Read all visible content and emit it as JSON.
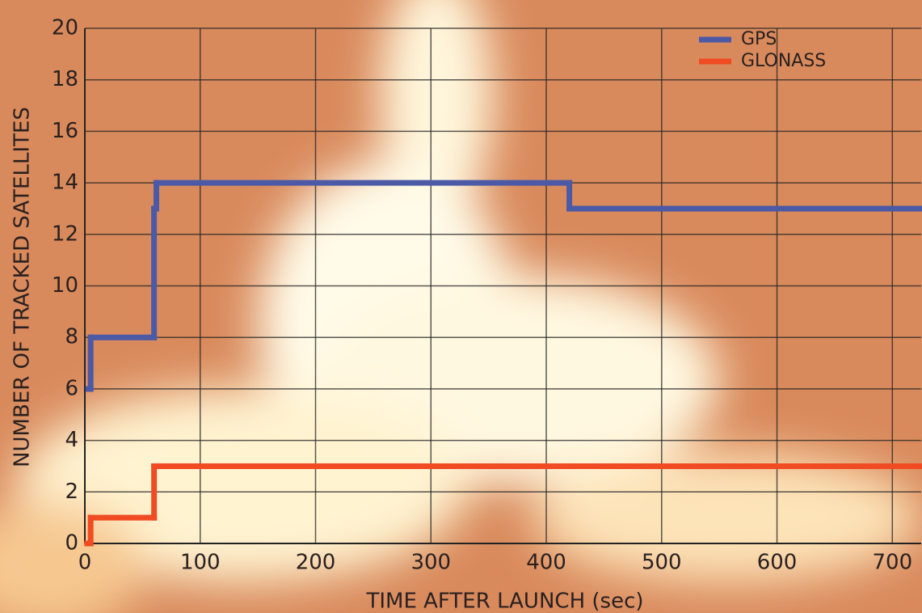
{
  "chart_data": {
    "type": "step",
    "x_label": "TIME AFTER LAUNCH (sec)",
    "y_label": "NUMBER OF TRACKED SATELLITES",
    "series": [
      {
        "name": "GPS",
        "color": "#4b59a6",
        "x": [
          3,
          5,
          60,
          62,
          420
        ],
        "values": [
          6,
          8,
          13,
          14,
          13
        ]
      },
      {
        "name": "GLONASS",
        "color": "#f04b22",
        "x": [
          2,
          5,
          60
        ],
        "values": [
          0,
          1,
          3
        ]
      }
    ],
    "xlim": [
      0,
      725
    ],
    "ylim": [
      0,
      20
    ],
    "xticks": [
      0,
      100,
      200,
      300,
      400,
      500,
      600,
      700
    ],
    "yticks": [
      0,
      2,
      4,
      6,
      8,
      10,
      12,
      14,
      16,
      18,
      20
    ],
    "grid": true,
    "legend": "top-right"
  }
}
